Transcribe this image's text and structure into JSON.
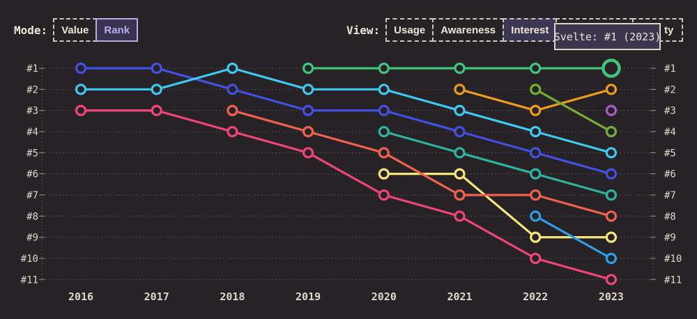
{
  "header": {
    "mode_label": "Mode:",
    "mode_buttons": [
      {
        "label": "Value",
        "selected": false
      },
      {
        "label": "Rank",
        "selected": true
      }
    ],
    "view_label": "View:",
    "view_buttons": [
      {
        "label": "Usage",
        "selected": false
      },
      {
        "label": "Awareness",
        "selected": false
      },
      {
        "label": "Interest",
        "selected": true
      },
      {
        "label": "",
        "selected": false,
        "note": "occluded by tooltip"
      },
      {
        "label": "ty",
        "selected": false,
        "note": "partially occluded by tooltip"
      }
    ],
    "tooltip": {
      "text": "Svelte: #1 (2023)"
    }
  },
  "colors": {
    "background": "#272225",
    "text": "#ece5d8",
    "grid": "#ded8ca",
    "accent_purple": "#b9abe8",
    "selected_bg": "#3b3752",
    "tooltip_bg": "#3b364e",
    "tooltip_border": "#ded7c7"
  },
  "chart_data": {
    "type": "line",
    "subtype": "bump-rank-chart",
    "x_labels": [
      "2016",
      "2017",
      "2018",
      "2019",
      "2020",
      "2021",
      "2022",
      "2023"
    ],
    "rank_labels": [
      "#1",
      "#2",
      "#3",
      "#4",
      "#5",
      "#6",
      "#7",
      "#8",
      "#9",
      "#10",
      "#11"
    ],
    "rank_range": [
      1,
      11
    ],
    "grid": "dotted-horizontal",
    "axis_lines": "dotted-vertical-left-right",
    "series": [
      {
        "id": "yellow",
        "name_visible": "",
        "color": "#f5e57d",
        "ranks": [
          null,
          null,
          null,
          null,
          6,
          6,
          9,
          9
        ]
      },
      {
        "id": "orange",
        "name_visible": "",
        "color": "#ec9d1e",
        "ranks": [
          null,
          null,
          null,
          null,
          null,
          2,
          3,
          2
        ]
      },
      {
        "id": "teal",
        "name_visible": "",
        "color": "#2fb3a1",
        "ranks": [
          null,
          null,
          null,
          null,
          4,
          5,
          6,
          7
        ]
      },
      {
        "id": "pink",
        "name_visible": "",
        "color": "#ef4579",
        "ranks": [
          3,
          3,
          4,
          5,
          7,
          8,
          10,
          11
        ]
      },
      {
        "id": "blue",
        "name_visible": "",
        "color": "#4351e2",
        "ranks": [
          1,
          1,
          2,
          3,
          3,
          4,
          5,
          6
        ]
      },
      {
        "id": "cyan",
        "name_visible": "",
        "color": "#3fc8f0",
        "ranks": [
          2,
          2,
          1,
          2,
          2,
          3,
          4,
          5
        ]
      },
      {
        "id": "salmon",
        "name_visible": "",
        "color": "#f0614e",
        "ranks": [
          null,
          null,
          3,
          4,
          5,
          7,
          7,
          8
        ]
      },
      {
        "id": "svelte",
        "name_visible": "Svelte",
        "color": "#40c57c",
        "ranks": [
          null,
          null,
          null,
          1,
          1,
          1,
          1,
          1
        ],
        "highlight_last": true
      },
      {
        "id": "lightgreen",
        "name_visible": "",
        "color": "#74af3a",
        "ranks": [
          null,
          null,
          null,
          null,
          null,
          null,
          2,
          4
        ]
      },
      {
        "id": "azure",
        "name_visible": "",
        "color": "#2f9de9",
        "ranks": [
          null,
          null,
          null,
          null,
          null,
          null,
          8,
          10
        ]
      },
      {
        "id": "purple",
        "name_visible": "",
        "color": "#a55cc8",
        "ranks": [
          null,
          null,
          null,
          null,
          null,
          null,
          null,
          3
        ]
      }
    ]
  }
}
